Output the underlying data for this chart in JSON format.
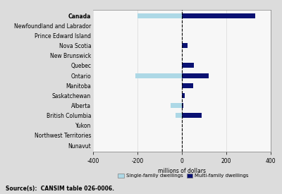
{
  "categories": [
    "Canada",
    "Newfoundland and Labrador",
    "Prince Edward Island",
    "Nova Scotia",
    "New Brunswick",
    "Quebec",
    "Ontario",
    "Manitoba",
    "Saskatchewan",
    "Alberta",
    "British Columbia",
    "Yukon",
    "Northwest Territories",
    "Nunavut"
  ],
  "single_family": [
    -200,
    0,
    0,
    0,
    0,
    5,
    -210,
    5,
    0,
    -50,
    -30,
    0,
    0,
    0
  ],
  "multi_family": [
    330,
    0,
    0,
    25,
    0,
    55,
    120,
    50,
    12,
    5,
    90,
    0,
    0,
    0
  ],
  "single_color": "#add8e6",
  "multi_color": "#0a1172",
  "xlim": [
    -400,
    400
  ],
  "xticks": [
    -400,
    -200,
    0,
    200,
    400
  ],
  "xlabel": "millions of dollars",
  "bg_color": "#dcdcdc",
  "plot_bg": "#f7f7f7",
  "legend_single": "Single-family dwellings",
  "legend_multi": "Multi-family dwellings",
  "source_text": "Source(s):  CANSIM table 026-0006."
}
